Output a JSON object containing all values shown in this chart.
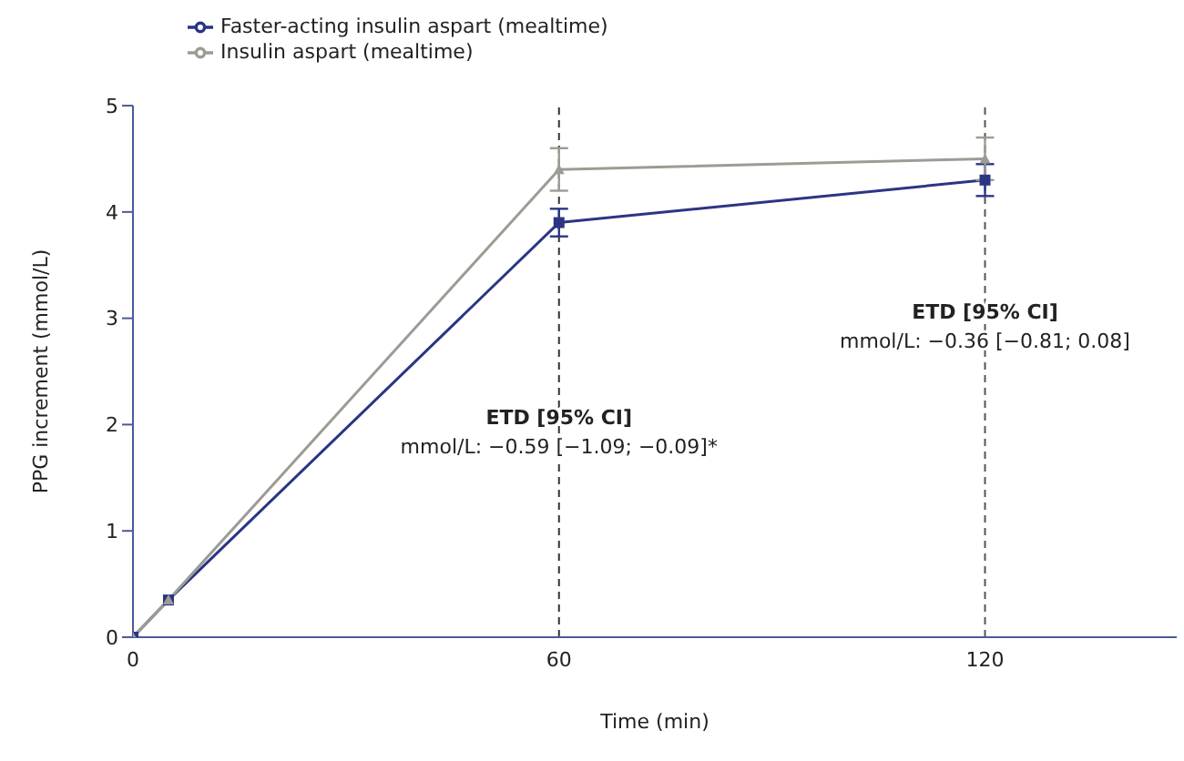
{
  "chart_data": {
    "type": "line",
    "xlabel": "Time (min)",
    "ylabel": "PPG increment (mmol/L)",
    "x": [
      0,
      5,
      60,
      120
    ],
    "series": [
      {
        "name": "Faster-acting insulin aspart (mealtime)",
        "color": "#2b3584",
        "values": [
          0,
          0.35,
          3.9,
          4.3
        ],
        "errors": [
          null,
          null,
          0.13,
          0.15
        ],
        "marker": "square"
      },
      {
        "name": "Insulin aspart (mealtime)",
        "color": "#9c9c94",
        "values": [
          0,
          0.35,
          4.4,
          4.5
        ],
        "errors": [
          null,
          null,
          0.2,
          0.2
        ],
        "marker": "triangle"
      }
    ],
    "xlim": [
      0,
      147
    ],
    "xticks": [
      0,
      60,
      120
    ],
    "ylim": [
      0,
      5
    ],
    "yticks": [
      0,
      1,
      2,
      3,
      4,
      5
    ],
    "ref_lines": [
      {
        "axis": "x",
        "value": 60,
        "color": "#333333",
        "line_style": "dashed"
      },
      {
        "axis": "x",
        "value": 120,
        "color": "#555555",
        "line_style": "dashed"
      }
    ],
    "annotations": [
      {
        "text": "ETD [95% CI]\nmmol/L: −0.59 [−1.09; −0.09]*",
        "x": 60,
        "y": 2.0
      },
      {
        "text": "ETD [95% CI]\nmmol/L: −0.36 [−0.81; 0.08]",
        "x": 120,
        "y": 3.0
      }
    ],
    "grid": false,
    "legend": "top left",
    "line_style": "solid"
  }
}
